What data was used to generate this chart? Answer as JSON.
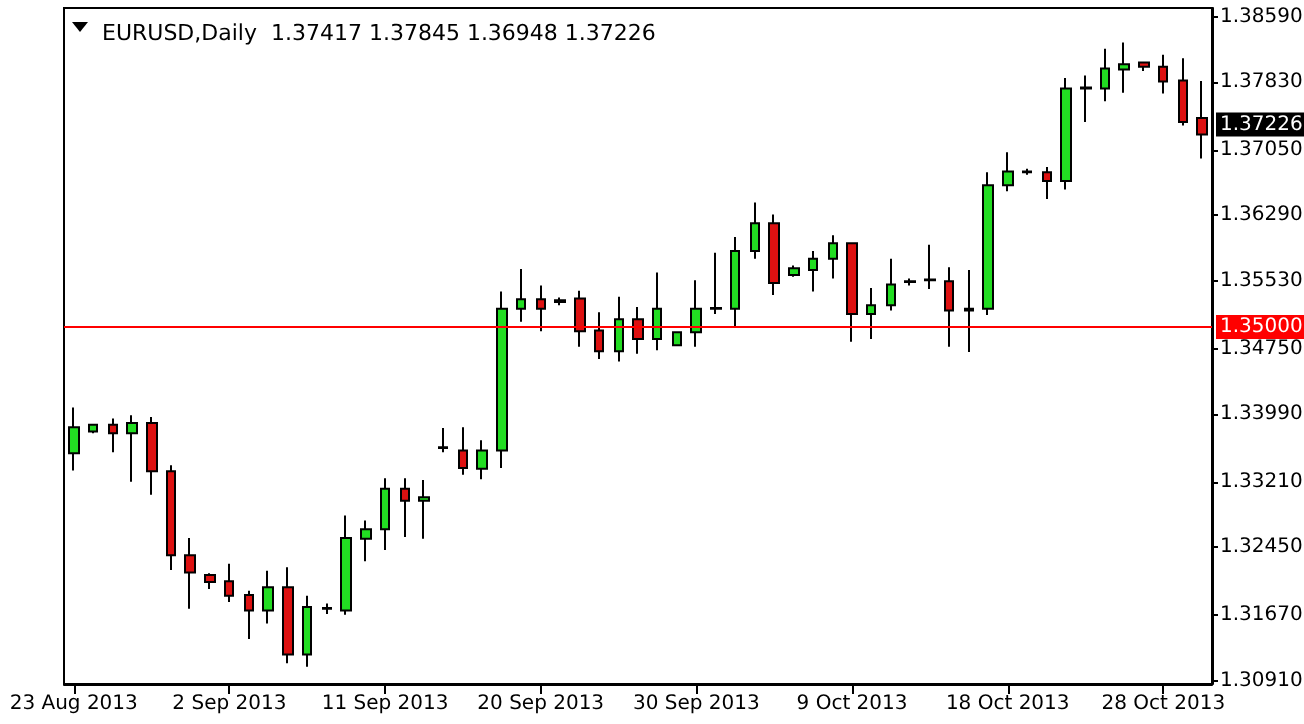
{
  "chart_data": {
    "type": "candlestick",
    "title": "EURUSD,Daily  1.37417 1.37845 1.36948 1.37226",
    "categories": [
      "23 Aug 2013",
      null,
      null,
      null,
      null,
      null,
      null,
      null,
      "2 Sep 2013",
      null,
      null,
      null,
      null,
      null,
      null,
      null,
      "11 Sep 2013",
      null,
      null,
      null,
      null,
      null,
      null,
      null,
      "20 Sep 2013",
      null,
      null,
      null,
      null,
      null,
      null,
      null,
      "30 Sep 2013",
      null,
      null,
      null,
      null,
      null,
      null,
      null,
      "9 Oct 2013",
      null,
      null,
      null,
      null,
      null,
      null,
      null,
      "18 Oct 2013",
      null,
      null,
      null,
      null,
      null,
      null,
      null,
      "28 Oct 2013",
      null,
      null
    ],
    "ohlc": [
      [
        1.3354,
        1.3407,
        1.3334,
        1.3384
      ],
      [
        1.3379,
        1.3387,
        1.3377,
        1.3387
      ],
      [
        1.3387,
        1.3394,
        1.3355,
        1.3377
      ],
      [
        1.3377,
        1.3398,
        1.3321,
        1.3389
      ],
      [
        1.3389,
        1.3396,
        1.3306,
        1.3333
      ],
      [
        1.3333,
        1.334,
        1.3219,
        1.3236
      ],
      [
        1.3236,
        1.3256,
        1.3174,
        1.3216
      ],
      [
        1.3213,
        1.3215,
        1.3197,
        1.3205
      ],
      [
        1.3206,
        1.3226,
        1.3182,
        1.3189
      ],
      [
        1.319,
        1.3195,
        1.3139,
        1.3172
      ],
      [
        1.3172,
        1.3218,
        1.3157,
        1.3199
      ],
      [
        1.3199,
        1.3222,
        1.3111,
        1.3121
      ],
      [
        1.3121,
        1.3189,
        1.3107,
        1.3176
      ],
      [
        1.3175,
        1.318,
        1.3168,
        1.3174
      ],
      [
        1.3172,
        1.3282,
        1.3167,
        1.3256
      ],
      [
        1.3255,
        1.3276,
        1.3229,
        1.3266
      ],
      [
        1.3266,
        1.3325,
        1.3242,
        1.3313
      ],
      [
        1.3313,
        1.3325,
        1.3257,
        1.3299
      ],
      [
        1.3299,
        1.3323,
        1.3255,
        1.3303
      ],
      [
        1.3361,
        1.3383,
        1.3355,
        1.336
      ],
      [
        1.3357,
        1.3384,
        1.3329,
        1.3337
      ],
      [
        1.3336,
        1.3369,
        1.3324,
        1.3357
      ],
      [
        1.3357,
        1.3541,
        1.3337,
        1.3521
      ],
      [
        1.3521,
        1.3567,
        1.3506,
        1.3532
      ],
      [
        1.3532,
        1.3548,
        1.3495,
        1.3521
      ],
      [
        1.3531,
        1.3534,
        1.3525,
        1.3529
      ],
      [
        1.3533,
        1.3542,
        1.3477,
        1.3495
      ],
      [
        1.3496,
        1.3517,
        1.3463,
        1.3472
      ],
      [
        1.3472,
        1.3535,
        1.346,
        1.3509
      ],
      [
        1.3509,
        1.3523,
        1.3469,
        1.3486
      ],
      [
        1.3486,
        1.3563,
        1.3473,
        1.3521
      ],
      [
        1.3479,
        1.3494,
        1.3479,
        1.3494
      ],
      [
        1.3494,
        1.3554,
        1.3477,
        1.3521
      ],
      [
        1.3522,
        1.3586,
        1.3515,
        1.3521
      ],
      [
        1.3521,
        1.3604,
        1.35,
        1.3588
      ],
      [
        1.3588,
        1.3644,
        1.3579,
        1.362
      ],
      [
        1.362,
        1.363,
        1.3537,
        1.3551
      ],
      [
        1.356,
        1.3571,
        1.3558,
        1.3568
      ],
      [
        1.3566,
        1.3588,
        1.3541,
        1.3579
      ],
      [
        1.3579,
        1.3606,
        1.3556,
        1.3597
      ],
      [
        1.3597,
        1.3598,
        1.3483,
        1.3515
      ],
      [
        1.3515,
        1.3545,
        1.3486,
        1.3525
      ],
      [
        1.3525,
        1.3579,
        1.3519,
        1.3549
      ],
      [
        1.3553,
        1.3556,
        1.3548,
        1.3552
      ],
      [
        1.3555,
        1.3595,
        1.3544,
        1.3554
      ],
      [
        1.3553,
        1.3569,
        1.3477,
        1.3519
      ],
      [
        1.3521,
        1.3566,
        1.3471,
        1.3519
      ],
      [
        1.3521,
        1.3679,
        1.3514,
        1.3664
      ],
      [
        1.3664,
        1.3702,
        1.3657,
        1.368
      ],
      [
        1.368,
        1.3683,
        1.3676,
        1.3679
      ],
      [
        1.3679,
        1.3685,
        1.3648,
        1.3669
      ],
      [
        1.3669,
        1.3788,
        1.3659,
        1.3776
      ],
      [
        1.3777,
        1.3791,
        1.3737,
        1.3776
      ],
      [
        1.3776,
        1.3822,
        1.3761,
        1.3799
      ],
      [
        1.3798,
        1.3829,
        1.3771,
        1.3804
      ],
      [
        1.3806,
        1.3806,
        1.3796,
        1.3801
      ],
      [
        1.3801,
        1.3815,
        1.377,
        1.3784
      ],
      [
        1.3785,
        1.3811,
        1.3733,
        1.3737
      ],
      [
        1.37417,
        1.37845,
        1.36948,
        1.37226
      ]
    ],
    "colors": [
      "#22dd22",
      "#22dd22",
      "#dd1111",
      "#22dd22",
      "#dd1111",
      "#dd1111",
      "#dd1111",
      "#dd1111",
      "#dd1111",
      "#dd1111",
      "#22dd22",
      "#dd1111",
      "#22dd22",
      "#000000",
      "#22dd22",
      "#22dd22",
      "#22dd22",
      "#dd1111",
      "#22dd22",
      "#000000",
      "#dd1111",
      "#22dd22",
      "#22dd22",
      "#22dd22",
      "#dd1111",
      "#dd1111",
      "#dd1111",
      "#dd1111",
      "#22dd22",
      "#dd1111",
      "#22dd22",
      "#22dd22",
      "#22dd22",
      "#000000",
      "#22dd22",
      "#22dd22",
      "#dd1111",
      "#22dd22",
      "#22dd22",
      "#22dd22",
      "#dd1111",
      "#22dd22",
      "#22dd22",
      "#000000",
      "#000000",
      "#dd1111",
      "#dd1111",
      "#22dd22",
      "#22dd22",
      "#000000",
      "#dd1111",
      "#22dd22",
      "#000000",
      "#22dd22",
      "#22dd22",
      "#dd1111",
      "#dd1111",
      "#dd1111",
      "#dd1111"
    ],
    "ylim": [
      1.3087,
      1.3869
    ],
    "yticks": [
      {
        "value": 1.3859,
        "label": "1.38590"
      },
      {
        "value": 1.3783,
        "label": "1.37830"
      },
      {
        "value": 1.3705,
        "label": "1.37050"
      },
      {
        "value": 1.3629,
        "label": "1.36290"
      },
      {
        "value": 1.3553,
        "label": "1.35530"
      },
      {
        "value": 1.3475,
        "label": "1.34750"
      },
      {
        "value": 1.3399,
        "label": "1.33990"
      },
      {
        "value": 1.3321,
        "label": "1.33210"
      },
      {
        "value": 1.3245,
        "label": "1.32450"
      },
      {
        "value": 1.3167,
        "label": "1.31670"
      },
      {
        "value": 1.3091,
        "label": "1.30910"
      }
    ],
    "ref_lines": [
      {
        "axis": "y",
        "value": 1.35,
        "label": "1.35000",
        "color": "#ff0000"
      }
    ],
    "annotations": [
      "1.37226"
    ]
  }
}
